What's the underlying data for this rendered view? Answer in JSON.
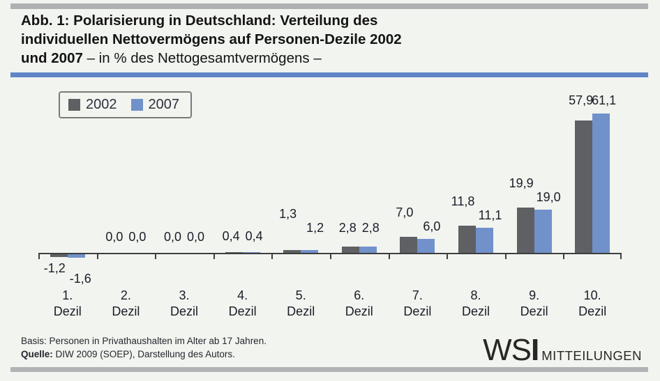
{
  "header": {
    "lines": [
      {
        "bold": "Abb. 1: Polarisierung in Deutschland: Verteilung des",
        "regular": ""
      },
      {
        "bold": "individuellen Nettovermögens auf Personen-Dezile 2002",
        "regular": ""
      },
      {
        "bold": "und 2007",
        "regular": " – in % des Nettogesamtvermögens –"
      }
    ]
  },
  "chart_data": {
    "type": "bar",
    "title": "Abb. 1: Polarisierung in Deutschland: Verteilung des individuellen Nettovermögens auf Personen-Dezile 2002 und 2007",
    "subtitle": "in % des Nettogesamtvermögens",
    "categories": [
      "1. Dezil",
      "2. Dezil",
      "3. Dezil",
      "4. Dezil",
      "5. Dezil",
      "6. Dezil",
      "7. Dezil",
      "8. Dezil",
      "9. Dezil",
      "10. Dezil"
    ],
    "series": [
      {
        "name": "2002",
        "color": "#5e6063",
        "values": [
          -1.2,
          0.0,
          0.0,
          0.4,
          1.3,
          2.8,
          7.0,
          11.8,
          19.9,
          57.9
        ]
      },
      {
        "name": "2007",
        "color": "#7191ca",
        "values": [
          -1.6,
          0.0,
          0.0,
          0.4,
          1.2,
          2.8,
          6.0,
          11.1,
          19.0,
          61.1
        ]
      }
    ],
    "value_labels": {
      "2002": [
        "-1,2",
        "0,0",
        "0,0",
        "0,4",
        "1,3",
        "2,8",
        "7,0",
        "11,8",
        "19,9",
        "57,9"
      ],
      "2007": [
        "-1,6",
        "0,0",
        "0,0",
        "0,4",
        "1,2",
        "2,8",
        "6,0",
        "11,1",
        "19,0",
        "61,1"
      ]
    },
    "label_layout": [
      "below",
      "inline",
      "inline",
      "inline",
      "stagger",
      "inline",
      "stagger",
      "stagger",
      "stagger",
      "inline"
    ],
    "label_lift": [
      0,
      4,
      4,
      4,
      14,
      8,
      0,
      0,
      0,
      0
    ],
    "ylim": [
      -5,
      65
    ],
    "grid": false,
    "y_axis_shown": false,
    "legend_position": "top-left"
  },
  "footer": {
    "basis_label": "Basis:",
    "basis_text": " Personen in Privathaushalten im Alter ab 17 Jahren.",
    "quelle_label": "Quelle:",
    "quelle_text": " DIW 2009 (SOEP), Darstellung des Autors."
  },
  "logo": {
    "ws": "WS",
    "i": "I",
    "word": "MITTEILUNGEN"
  },
  "colors": {
    "background": "#f1f4ef",
    "divider_gray": "#adb1b2",
    "divider_blue": "#6185c7",
    "bar_2002": "#5e6063",
    "bar_2007": "#7191ca",
    "axis": "#3e3e3e",
    "text": "#1c1c28"
  }
}
